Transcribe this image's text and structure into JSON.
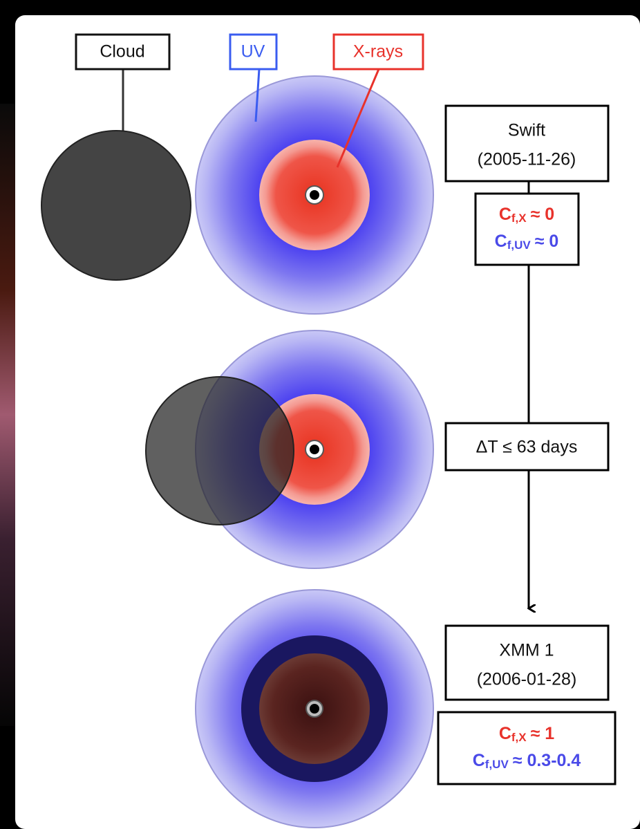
{
  "labels": {
    "cloud": "Cloud",
    "uv": "UV",
    "xrays": "X-rays"
  },
  "events": [
    {
      "title": "Swift",
      "date": "(2005-11-26)",
      "covering": [
        {
          "symbol": "C",
          "subscript": "f,X",
          "relation": "≈ 0"
        },
        {
          "symbol": "C",
          "subscript": "f,UV",
          "relation": "≈ 0"
        }
      ]
    },
    {
      "title": "XMM 1",
      "date": "(2006-01-28)",
      "covering": [
        {
          "symbol": "C",
          "subscript": "f,X",
          "relation": "≈ 1"
        },
        {
          "symbol": "C",
          "subscript": "f,UV",
          "relation": "≈ 0.3-0.4"
        }
      ]
    }
  ],
  "interval": "ΔT ≤ 63 days"
}
